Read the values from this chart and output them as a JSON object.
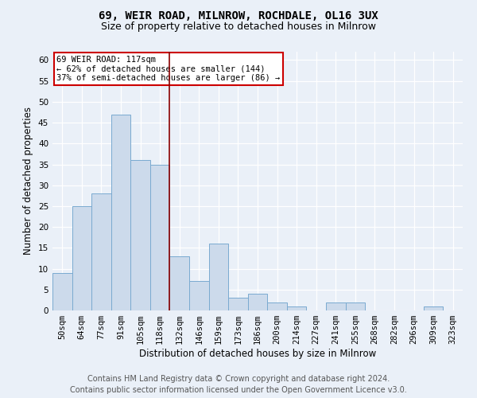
{
  "title1": "69, WEIR ROAD, MILNROW, ROCHDALE, OL16 3UX",
  "title2": "Size of property relative to detached houses in Milnrow",
  "xlabel": "Distribution of detached houses by size in Milnrow",
  "ylabel": "Number of detached properties",
  "categories": [
    "50sqm",
    "64sqm",
    "77sqm",
    "91sqm",
    "105sqm",
    "118sqm",
    "132sqm",
    "146sqm",
    "159sqm",
    "173sqm",
    "186sqm",
    "200sqm",
    "214sqm",
    "227sqm",
    "241sqm",
    "255sqm",
    "268sqm",
    "282sqm",
    "296sqm",
    "309sqm",
    "323sqm"
  ],
  "values": [
    9,
    25,
    28,
    47,
    36,
    35,
    13,
    7,
    16,
    3,
    4,
    2,
    1,
    0,
    2,
    2,
    0,
    0,
    0,
    1,
    0
  ],
  "bar_color": "#ccdaeb",
  "bar_edge_color": "#7aaad0",
  "vline_index": 5,
  "vline_color": "#8b0000",
  "annotation_line1": "69 WEIR ROAD: 117sqm",
  "annotation_line2": "← 62% of detached houses are smaller (144)",
  "annotation_line3": "37% of semi-detached houses are larger (86) →",
  "annotation_box_color": "white",
  "annotation_box_edge": "#cc0000",
  "ylim": [
    0,
    62
  ],
  "yticks": [
    0,
    5,
    10,
    15,
    20,
    25,
    30,
    35,
    40,
    45,
    50,
    55,
    60
  ],
  "footer1": "Contains HM Land Registry data © Crown copyright and database right 2024.",
  "footer2": "Contains public sector information licensed under the Open Government Licence v3.0.",
  "bg_color": "#eaf0f8",
  "plot_bg_color": "#eaf0f8",
  "grid_color": "white",
  "title1_fontsize": 10,
  "title2_fontsize": 9,
  "axis_label_fontsize": 8.5,
  "tick_fontsize": 7.5,
  "footer_fontsize": 7
}
